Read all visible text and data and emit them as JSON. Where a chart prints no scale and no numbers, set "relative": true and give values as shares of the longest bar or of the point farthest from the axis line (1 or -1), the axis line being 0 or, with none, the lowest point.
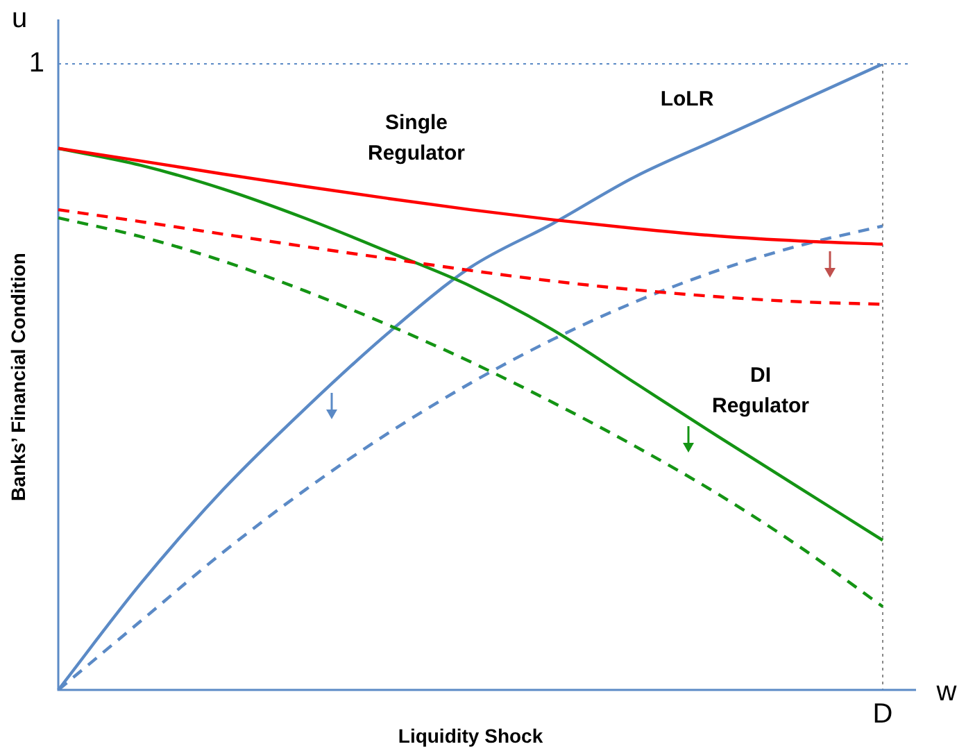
{
  "chart_data": {
    "type": "line",
    "relative": true,
    "xlabel": "Liquidity Shock",
    "ylabel": "Banks’ Financial Condition",
    "categories": [
      null,
      null,
      null,
      null,
      null,
      null,
      null,
      null,
      null,
      null,
      null
    ],
    "series": [
      {
        "name": "Single Regulator",
        "color": "#ff0000",
        "line_style": "solid",
        "values": [
          0.865,
          0.845,
          0.824,
          0.804,
          0.785,
          0.767,
          0.751,
          0.737,
          0.725,
          0.717,
          0.712
        ]
      },
      {
        "color": "#ff0000",
        "line_style": "dashed",
        "values": [
          0.767,
          0.748,
          0.728,
          0.708,
          0.689,
          0.67,
          0.653,
          0.639,
          0.628,
          0.62,
          0.616
        ]
      },
      {
        "name": "DI Regulator",
        "color": "#149414",
        "line_style": "solid",
        "values": [
          0.865,
          0.838,
          0.8,
          0.753,
          0.7,
          0.645,
          0.575,
          0.49,
          0.405,
          0.322,
          0.239
        ]
      },
      {
        "color": "#149414",
        "line_style": "dashed",
        "values": [
          0.754,
          0.724,
          0.685,
          0.637,
          0.583,
          0.524,
          0.459,
          0.389,
          0.313,
          0.228,
          0.133
        ]
      },
      {
        "name": "LoLR",
        "color": "#5b8ac6",
        "line_style": "solid",
        "values": [
          0,
          0.17,
          0.32,
          0.45,
          0.57,
          0.675,
          0.745,
          0.82,
          0.88,
          0.94,
          1
        ]
      },
      {
        "color": "#5b8ac6",
        "line_style": "dashed",
        "values": [
          0,
          0.11,
          0.22,
          0.32,
          0.41,
          0.49,
          0.56,
          0.62,
          0.67,
          0.71,
          0.741
        ]
      }
    ],
    "ref_lines": [
      {
        "axis": "y",
        "value": 1,
        "label": "1",
        "color": "#5b8ac6",
        "line_style": "dotted"
      }
    ],
    "annotations": [
      "u",
      "w",
      "D"
    ],
    "marker": "none",
    "legend": false
  }
}
